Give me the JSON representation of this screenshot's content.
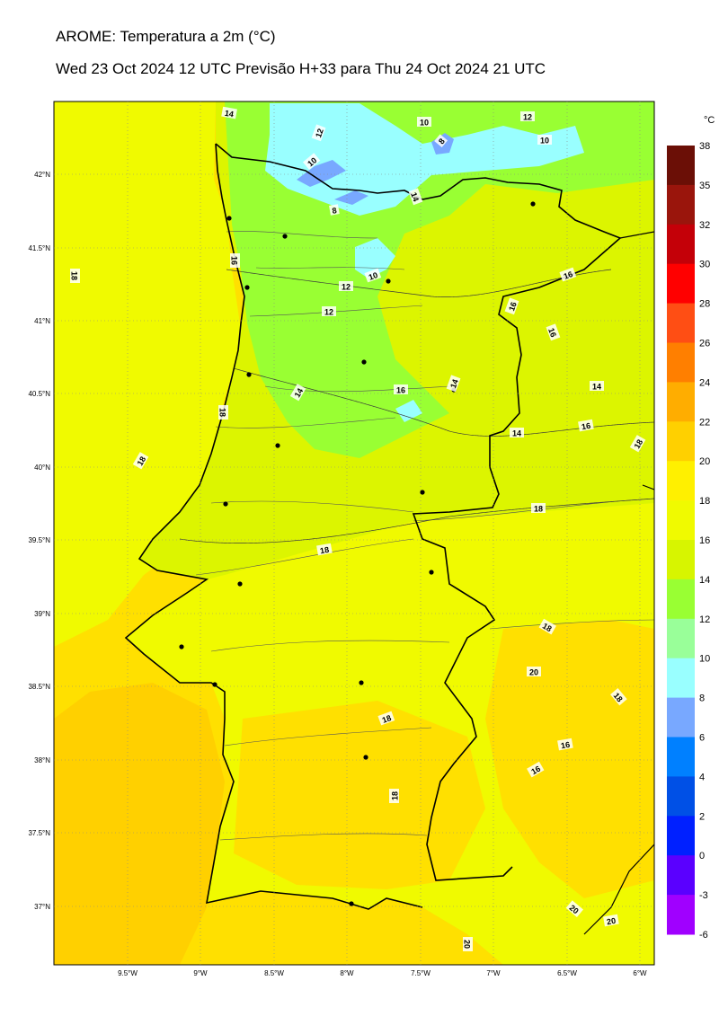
{
  "title": "AROME: Temperatura a 2m (°C)",
  "subtitle": "Wed 23 Oct 2024 12 UTC Previsão H+33 para Thu 24 Oct 2024 21 UTC",
  "colorbar": {
    "unit": "°C",
    "levels": [
      38,
      35,
      32,
      30,
      28,
      26,
      24,
      22,
      20,
      18,
      16,
      14,
      12,
      10,
      8,
      6,
      4,
      2,
      0,
      -3,
      -6
    ],
    "colors": [
      "#6b0f06",
      "#9a150c",
      "#c40008",
      "#ff0000",
      "#ff4e14",
      "#ff7f00",
      "#ffad00",
      "#ffd000",
      "#fff000",
      "#f0fa00",
      "#d7f500",
      "#99ff33",
      "#99ff99",
      "#99ffff",
      "#78a8ff",
      "#0080ff",
      "#0050e6",
      "#0020ff",
      "#5a00ff",
      "#a000ff"
    ]
  },
  "axes": {
    "lon_ticks": [
      "9.5°W",
      "9°W",
      "8.5°W",
      "8°W",
      "7.5°W",
      "7°W",
      "6.5°W",
      "6°W"
    ],
    "lat_ticks": [
      "42°N",
      "41.5°N",
      "41°N",
      "40.5°N",
      "40°N",
      "39.5°N",
      "39°N",
      "38.5°N",
      "38°N",
      "37.5°N",
      "37°N"
    ]
  },
  "contour_labels": [
    "14",
    "12",
    "10",
    "10",
    "8",
    "12",
    "10",
    "8",
    "14",
    "18",
    "16",
    "10",
    "12",
    "12",
    "16",
    "16",
    "16",
    "14",
    "14",
    "16",
    "18",
    "14",
    "18",
    "16",
    "14",
    "18",
    "18",
    "18",
    "18",
    "20",
    "18",
    "18",
    "16",
    "16",
    "18",
    "20",
    "20",
    "20"
  ],
  "map": {
    "sea_color": "#ffe000",
    "land_color": "#dcf500",
    "cool_color": "#99ff33",
    "cold_color": "#99ffff",
    "coldest_color": "#78a8ff"
  }
}
